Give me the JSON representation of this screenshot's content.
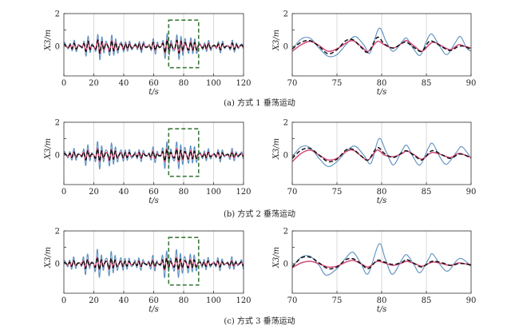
{
  "captions": [
    "(a) 方式 1 垂荡运动",
    "(b) 方式 2 垂荡运动",
    "(c) 方式 3 垂荡运动"
  ],
  "colors": {
    "series_blue": "#5b8fc0",
    "series_pink": "#d44a7a",
    "series_black": "#111111",
    "zoom_box": "#3c7a3c",
    "grid": "#c8c8c8"
  },
  "chart_data": [
    {
      "id": "a-full",
      "type": "line",
      "xlabel": "t/s",
      "ylabel": "X3/m",
      "xlim": [
        0,
        120
      ],
      "ylim": [
        -1.8,
        2.0
      ],
      "xticks": [
        0,
        20,
        40,
        60,
        80,
        100,
        120
      ],
      "yticks": [
        0,
        1,
        2
      ],
      "ytick_labels": [
        "0",
        "",
        "2"
      ],
      "grid": "vertical",
      "zoom_box": {
        "x": [
          70,
          90
        ],
        "y": [
          -1.3,
          1.6
        ]
      },
      "series": [
        {
          "style": "solid-blue",
          "amp": 0.75,
          "phase": 0.0
        },
        {
          "style": "solid-pink",
          "amp": 0.4,
          "phase": 0.15
        },
        {
          "style": "dashed-black",
          "amp": 0.38,
          "phase": 0.05
        }
      ]
    },
    {
      "id": "a-zoom",
      "type": "line",
      "xlabel": "t/s",
      "ylabel": "X3/m",
      "xlim": [
        70,
        90
      ],
      "ylim": [
        -1.8,
        2.0
      ],
      "xticks": [
        70,
        75,
        80,
        85,
        90
      ],
      "yticks": [
        0,
        1,
        2
      ],
      "ytick_labels": [
        "0",
        "",
        "2"
      ],
      "grid": "vertical",
      "series": [
        {
          "style": "solid-blue",
          "points": [
            [
              70,
              -0.2
            ],
            [
              71,
              0.45
            ],
            [
              72,
              0.5
            ],
            [
              73,
              -0.1
            ],
            [
              74,
              -0.6
            ],
            [
              75,
              -0.5
            ],
            [
              76,
              0.1
            ],
            [
              77,
              0.6
            ],
            [
              78,
              0.1
            ],
            [
              78.7,
              -0.4
            ],
            [
              79.7,
              1.1
            ],
            [
              80.5,
              0.3
            ],
            [
              81.3,
              -0.3
            ],
            [
              82.3,
              0.3
            ],
            [
              82.8,
              0.5
            ],
            [
              83.5,
              -0.1
            ],
            [
              84.3,
              -0.55
            ],
            [
              85,
              0.3
            ],
            [
              85.6,
              0.75
            ],
            [
              86.5,
              0.0
            ],
            [
              87.3,
              -0.5
            ],
            [
              88.2,
              0.2
            ],
            [
              88.8,
              0.6
            ],
            [
              89.5,
              -0.1
            ],
            [
              90,
              -0.3
            ]
          ]
        },
        {
          "style": "solid-pink",
          "points": [
            [
              70,
              -0.3
            ],
            [
              71,
              0.1
            ],
            [
              72,
              0.3
            ],
            [
              73,
              0.05
            ],
            [
              74,
              -0.3
            ],
            [
              75,
              -0.15
            ],
            [
              76,
              0.2
            ],
            [
              76.8,
              0.35
            ],
            [
              77.7,
              0.0
            ],
            [
              78.5,
              -0.3
            ],
            [
              79.5,
              0.3
            ],
            [
              80.3,
              0.1
            ],
            [
              81.3,
              -0.1
            ],
            [
              82.3,
              0.2
            ],
            [
              82.8,
              0.35
            ],
            [
              83.7,
              0.0
            ],
            [
              84.5,
              -0.3
            ],
            [
              85.4,
              0.15
            ],
            [
              85.9,
              0.25
            ],
            [
              86.8,
              0.0
            ],
            [
              87.7,
              -0.2
            ],
            [
              88.6,
              0.1
            ],
            [
              89.3,
              0.0
            ],
            [
              90,
              -0.1
            ]
          ]
        },
        {
          "style": "dashed-black",
          "points": [
            [
              70,
              -0.15
            ],
            [
              71,
              0.25
            ],
            [
              72,
              0.35
            ],
            [
              73,
              0.0
            ],
            [
              74,
              -0.45
            ],
            [
              75,
              -0.2
            ],
            [
              76,
              0.35
            ],
            [
              76.8,
              0.4
            ],
            [
              77.7,
              -0.05
            ],
            [
              78.5,
              -0.35
            ],
            [
              79.5,
              0.55
            ],
            [
              80.3,
              0.15
            ],
            [
              81.3,
              -0.1
            ],
            [
              82.3,
              0.2
            ],
            [
              82.8,
              0.25
            ],
            [
              83.7,
              -0.1
            ],
            [
              84.5,
              -0.3
            ],
            [
              85.3,
              0.3
            ],
            [
              85.9,
              0.25
            ],
            [
              86.8,
              -0.05
            ],
            [
              87.7,
              -0.25
            ],
            [
              88.6,
              0.0
            ],
            [
              89.3,
              0.0
            ],
            [
              90,
              -0.2
            ]
          ]
        }
      ]
    },
    {
      "id": "b-full",
      "type": "line",
      "xlabel": "t/s",
      "ylabel": "X3/m",
      "xlim": [
        0,
        120
      ],
      "ylim": [
        -1.8,
        2.0
      ],
      "xticks": [
        0,
        20,
        40,
        60,
        80,
        100,
        120
      ],
      "yticks": [
        0,
        1,
        2
      ],
      "ytick_labels": [
        "0",
        "",
        "2"
      ],
      "grid": "vertical",
      "zoom_box": {
        "x": [
          70,
          90
        ],
        "y": [
          -1.3,
          1.6
        ]
      },
      "series": [
        {
          "style": "solid-blue",
          "amp": 0.8,
          "phase": 0.3
        },
        {
          "style": "solid-pink",
          "amp": 0.38,
          "phase": 0.45
        },
        {
          "style": "dashed-black",
          "amp": 0.36,
          "phase": 0.35
        }
      ]
    },
    {
      "id": "b-zoom",
      "type": "line",
      "xlabel": "t/s",
      "ylabel": "X3/m",
      "xlim": [
        70,
        90
      ],
      "ylim": [
        -1.8,
        2.0
      ],
      "xticks": [
        70,
        75,
        80,
        85,
        90
      ],
      "yticks": [
        0,
        1,
        2
      ],
      "ytick_labels": [
        "0",
        "",
        "2"
      ],
      "grid": "vertical",
      "series": [
        {
          "style": "solid-blue",
          "points": [
            [
              70,
              -0.1
            ],
            [
              71,
              0.5
            ],
            [
              72,
              0.45
            ],
            [
              73,
              -0.2
            ],
            [
              74,
              -0.7
            ],
            [
              75,
              -0.4
            ],
            [
              76,
              0.2
            ],
            [
              77,
              0.55
            ],
            [
              78,
              0.0
            ],
            [
              78.8,
              -0.5
            ],
            [
              79.7,
              1.0
            ],
            [
              80.5,
              0.2
            ],
            [
              81.3,
              -0.6
            ],
            [
              82.2,
              0.2
            ],
            [
              82.8,
              0.6
            ],
            [
              83.5,
              -0.1
            ],
            [
              84.3,
              -0.6
            ],
            [
              85.2,
              0.4
            ],
            [
              85.7,
              0.7
            ],
            [
              86.6,
              -0.2
            ],
            [
              87.3,
              -0.55
            ],
            [
              88.4,
              0.2
            ],
            [
              89,
              0.5
            ],
            [
              90,
              -0.2
            ]
          ]
        },
        {
          "style": "solid-pink",
          "points": [
            [
              70,
              -0.4
            ],
            [
              71,
              0.1
            ],
            [
              72,
              0.3
            ],
            [
              73,
              0.0
            ],
            [
              74,
              -0.3
            ],
            [
              75,
              -0.2
            ],
            [
              76,
              0.2
            ],
            [
              76.8,
              0.3
            ],
            [
              77.7,
              -0.05
            ],
            [
              78.5,
              -0.3
            ],
            [
              79.5,
              0.3
            ],
            [
              80.3,
              0.0
            ],
            [
              81.3,
              -0.1
            ],
            [
              82.3,
              0.1
            ],
            [
              82.8,
              0.25
            ],
            [
              83.7,
              0.0
            ],
            [
              84.5,
              -0.25
            ],
            [
              85.4,
              0.1
            ],
            [
              85.9,
              0.15
            ],
            [
              86.8,
              0.0
            ],
            [
              87.7,
              -0.15
            ],
            [
              88.6,
              0.1
            ],
            [
              89.3,
              0.0
            ],
            [
              90,
              -0.15
            ]
          ]
        },
        {
          "style": "dashed-black",
          "points": [
            [
              70,
              -0.2
            ],
            [
              71,
              0.3
            ],
            [
              72,
              0.4
            ],
            [
              73,
              0.0
            ],
            [
              74,
              -0.4
            ],
            [
              75,
              -0.25
            ],
            [
              76,
              0.3
            ],
            [
              76.8,
              0.35
            ],
            [
              77.7,
              -0.05
            ],
            [
              78.5,
              -0.3
            ],
            [
              79.5,
              0.45
            ],
            [
              80.3,
              0.1
            ],
            [
              81.3,
              -0.15
            ],
            [
              82.3,
              0.15
            ],
            [
              82.8,
              0.25
            ],
            [
              83.7,
              -0.05
            ],
            [
              84.5,
              -0.3
            ],
            [
              85.4,
              0.2
            ],
            [
              85.9,
              0.25
            ],
            [
              86.8,
              0.0
            ],
            [
              87.7,
              -0.2
            ],
            [
              88.6,
              0.05
            ],
            [
              89.3,
              0.0
            ],
            [
              90,
              -0.2
            ]
          ]
        }
      ]
    },
    {
      "id": "c-full",
      "type": "line",
      "xlabel": "t/s",
      "ylabel": "X3/m",
      "xlim": [
        0,
        120
      ],
      "ylim": [
        -1.8,
        2.0
      ],
      "xticks": [
        0,
        20,
        40,
        60,
        80,
        100,
        120
      ],
      "yticks": [
        0,
        1,
        2
      ],
      "ytick_labels": [
        "0",
        "",
        "2"
      ],
      "grid": "vertical",
      "zoom_box": {
        "x": [
          70,
          90
        ],
        "y": [
          -1.3,
          1.6
        ]
      },
      "series": [
        {
          "style": "solid-blue",
          "amp": 0.82,
          "phase": 0.6
        },
        {
          "style": "solid-pink",
          "amp": 0.35,
          "phase": 0.75
        },
        {
          "style": "dashed-black",
          "amp": 0.36,
          "phase": 0.65
        }
      ]
    },
    {
      "id": "c-zoom",
      "type": "line",
      "xlabel": "t/s",
      "ylabel": "X3/m",
      "xlim": [
        70,
        90
      ],
      "ylim": [
        -1.8,
        2.0
      ],
      "xticks": [
        70,
        75,
        80,
        85,
        90
      ],
      "yticks": [
        0,
        1,
        2
      ],
      "ytick_labels": [
        "0",
        "",
        "2"
      ],
      "grid": "vertical",
      "series": [
        {
          "style": "solid-blue",
          "points": [
            [
              70,
              -0.2
            ],
            [
              71,
              0.4
            ],
            [
              72,
              0.45
            ],
            [
              73,
              -0.1
            ],
            [
              73.8,
              -0.7
            ],
            [
              75,
              -0.3
            ],
            [
              76,
              0.35
            ],
            [
              76.8,
              0.7
            ],
            [
              77.7,
              0.0
            ],
            [
              78.5,
              -0.6
            ],
            [
              79.7,
              1.2
            ],
            [
              80.4,
              0.3
            ],
            [
              81.2,
              -0.65
            ],
            [
              82.2,
              0.2
            ],
            [
              82.8,
              0.55
            ],
            [
              83.6,
              -0.05
            ],
            [
              84.3,
              -0.55
            ],
            [
              85.3,
              0.35
            ],
            [
              85.7,
              0.6
            ],
            [
              86.6,
              -0.1
            ],
            [
              87.4,
              -0.45
            ],
            [
              88.4,
              0.2
            ],
            [
              89,
              0.3
            ],
            [
              90,
              -0.15
            ]
          ]
        },
        {
          "style": "solid-pink",
          "points": [
            [
              70,
              -0.25
            ],
            [
              71,
              0.05
            ],
            [
              72,
              0.15
            ],
            [
              73,
              0.0
            ],
            [
              74,
              -0.2
            ],
            [
              75,
              -0.15
            ],
            [
              76,
              0.1
            ],
            [
              76.8,
              0.2
            ],
            [
              77.7,
              0.0
            ],
            [
              78.5,
              -0.2
            ],
            [
              79.5,
              0.15
            ],
            [
              80.3,
              0.05
            ],
            [
              81.3,
              -0.1
            ],
            [
              82.3,
              0.05
            ],
            [
              82.8,
              0.15
            ],
            [
              83.7,
              0.0
            ],
            [
              84.5,
              -0.15
            ],
            [
              85.4,
              0.05
            ],
            [
              85.9,
              0.1
            ],
            [
              86.8,
              0.0
            ],
            [
              87.7,
              -0.1
            ],
            [
              88.6,
              0.05
            ],
            [
              89.3,
              0.0
            ],
            [
              90,
              -0.05
            ]
          ]
        },
        {
          "style": "dashed-black",
          "points": [
            [
              70,
              -0.2
            ],
            [
              71,
              0.35
            ],
            [
              72,
              0.4
            ],
            [
              73,
              0.05
            ],
            [
              74,
              -0.3
            ],
            [
              75,
              -0.2
            ],
            [
              76,
              0.25
            ],
            [
              76.8,
              0.3
            ],
            [
              77.7,
              0.0
            ],
            [
              78.5,
              -0.3
            ],
            [
              79.5,
              0.2
            ],
            [
              80.3,
              0.1
            ],
            [
              81.3,
              -0.05
            ],
            [
              82.3,
              0.1
            ],
            [
              82.8,
              0.25
            ],
            [
              83.7,
              0.0
            ],
            [
              84.5,
              -0.2
            ],
            [
              85.4,
              0.1
            ],
            [
              85.9,
              0.15
            ],
            [
              86.8,
              0.05
            ],
            [
              87.7,
              -0.1
            ],
            [
              88.6,
              0.0
            ],
            [
              89.3,
              0.0
            ],
            [
              90,
              -0.1
            ]
          ]
        }
      ]
    }
  ]
}
